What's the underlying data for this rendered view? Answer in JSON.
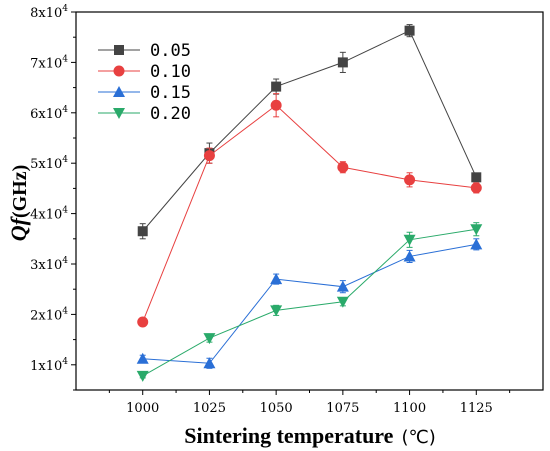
{
  "chart_data": {
    "type": "line",
    "x": [
      1000,
      1025,
      1050,
      1075,
      1100,
      1125
    ],
    "xlabel_main": "Sintering temperature",
    "xlabel_unit": "(℃)",
    "ylabel_main": "Qf",
    "ylabel_unit": "(GHz)",
    "xlim": [
      975,
      1150
    ],
    "ylim": [
      5000,
      80000
    ],
    "x_ticks": [
      "1000",
      "1025",
      "1050",
      "1075",
      "1100",
      "1125"
    ],
    "y_ticks": [
      {
        "value": 10000,
        "mantissa": "1x10",
        "exp": "4"
      },
      {
        "value": 20000,
        "mantissa": "2x10",
        "exp": "4"
      },
      {
        "value": 30000,
        "mantissa": "3x10",
        "exp": "4"
      },
      {
        "value": 40000,
        "mantissa": "4x10",
        "exp": "4"
      },
      {
        "value": 50000,
        "mantissa": "5x10",
        "exp": "4"
      },
      {
        "value": 60000,
        "mantissa": "6x10",
        "exp": "4"
      },
      {
        "value": 70000,
        "mantissa": "7x10",
        "exp": "4"
      },
      {
        "value": 80000,
        "mantissa": "8x10",
        "exp": "4"
      }
    ],
    "legend_position": "top-left",
    "grid": false,
    "series": [
      {
        "name": "0.05",
        "color": "#444444",
        "marker": "square",
        "values": [
          36500,
          52000,
          65200,
          70000,
          76300,
          47200
        ],
        "errors": [
          1500,
          2000,
          1500,
          2000,
          1200,
          800
        ]
      },
      {
        "name": "0.10",
        "color": "#e84040",
        "marker": "circle",
        "values": [
          18500,
          51500,
          61500,
          49200,
          46700,
          45100
        ],
        "errors": [
          500,
          1500,
          2300,
          1100,
          1400,
          1000
        ]
      },
      {
        "name": "0.15",
        "color": "#2a6fd6",
        "marker": "triangle-up",
        "values": [
          11200,
          10300,
          27000,
          25500,
          31500,
          33900
        ],
        "errors": [
          700,
          1000,
          1000,
          1200,
          1200,
          1100
        ]
      },
      {
        "name": "0.20",
        "color": "#2aaa6a",
        "marker": "triangle-down",
        "values": [
          7800,
          15300,
          20800,
          22500,
          34800,
          36900
        ],
        "errors": [
          400,
          800,
          1000,
          800,
          1500,
          1300
        ]
      }
    ]
  }
}
